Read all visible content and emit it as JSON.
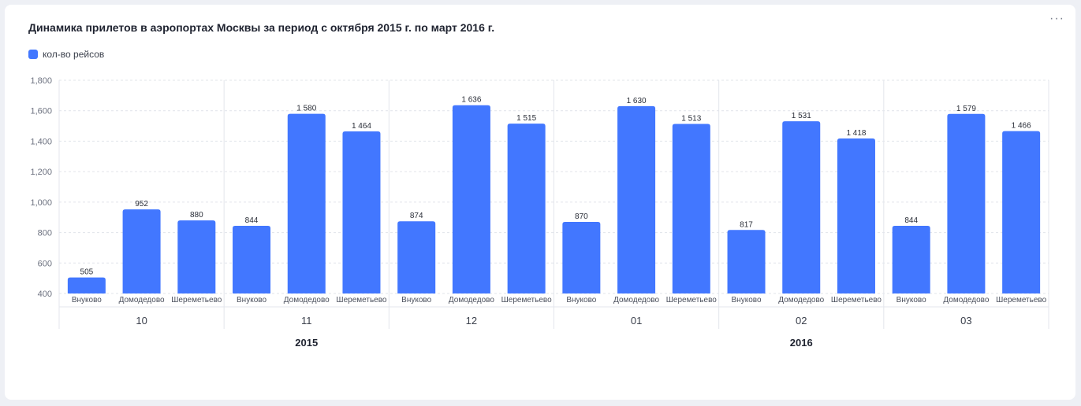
{
  "header": {
    "title": "Динамика прилетов в аэропортах Москвы за период с октября 2015 г. по март 2016 г.",
    "menu_label": "···"
  },
  "legend": {
    "label": "кол-во рейсов",
    "color": "#4277ff"
  },
  "chart_data": {
    "type": "bar",
    "title": "Динамика прилетов в аэропортах Москвы за период с октября 2015 г. по март 2016 г.",
    "ylim": [
      400,
      1800
    ],
    "yticks": [
      "400",
      "600",
      "800",
      "1,000",
      "1,200",
      "1,400",
      "1,600",
      "1,800"
    ],
    "ytick_values": [
      400,
      600,
      800,
      1000,
      1200,
      1400,
      1600,
      1800
    ],
    "grid": true,
    "legend_position": "top-left",
    "bar_color": "#4277ff",
    "airports": [
      "Внуково",
      "Домодедово",
      "Шереметьево"
    ],
    "groups": [
      {
        "month": "10",
        "year": "2015",
        "values": [
          505,
          952,
          880
        ],
        "labels": [
          "505",
          "952",
          "880"
        ]
      },
      {
        "month": "11",
        "year": "2015",
        "values": [
          844,
          1580,
          1464
        ],
        "labels": [
          "844",
          "1 580",
          "1 464"
        ]
      },
      {
        "month": "12",
        "year": "2015",
        "values": [
          874,
          1636,
          1515
        ],
        "labels": [
          "874",
          "1 636",
          "1 515"
        ]
      },
      {
        "month": "01",
        "year": "2016",
        "values": [
          870,
          1630,
          1513
        ],
        "labels": [
          "870",
          "1 630",
          "1 513"
        ]
      },
      {
        "month": "02",
        "year": "2016",
        "values": [
          817,
          1531,
          1418
        ],
        "labels": [
          "817",
          "1 531",
          "1 418"
        ]
      },
      {
        "month": "03",
        "year": "2016",
        "values": [
          844,
          1579,
          1466
        ],
        "labels": [
          "844",
          "1 579",
          "1 466"
        ]
      }
    ],
    "years": [
      "2015",
      "2016"
    ],
    "series": [
      {
        "name": "кол-во рейсов"
      }
    ]
  }
}
